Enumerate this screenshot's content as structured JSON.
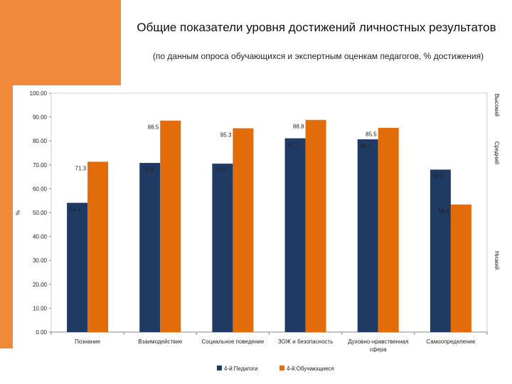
{
  "title": "Общие показатели уровня достижений личностных результатов",
  "subtitle": "(по данным опроса обучающихся и экспертным оценкам педагогов, % достижения)",
  "colors": {
    "accent": "#f08a3a",
    "series1": "#1f3b63",
    "series2": "#e36c0a"
  },
  "chart_data": {
    "type": "bar",
    "ylabel": "%",
    "ylim": [
      0,
      100
    ],
    "yticks": [
      "0.00",
      "10.00",
      "20.00",
      "30.00",
      "40.00",
      "50.00",
      "60.00",
      "70.00",
      "80.00",
      "90.00",
      "100.00"
    ],
    "categories": [
      [
        "Познание"
      ],
      [
        "Взаимодействие"
      ],
      [
        "Социальное поведение"
      ],
      [
        "ЗОЖ и безопасность"
      ],
      [
        "Духовно-нравственная",
        "сфера"
      ],
      [
        "Самоопределение"
      ]
    ],
    "series": [
      {
        "name": "4-й:Педагоги",
        "values": [
          54.1,
          70.8,
          70.5,
          81.1,
          80.7,
          68.0
        ],
        "labels": [
          "54.1",
          "70.8",
          "70.5",
          "81.1",
          "80.7",
          "68.0"
        ]
      },
      {
        "name": "4-й:Обучающиеся",
        "values": [
          71.3,
          88.5,
          85.3,
          88.8,
          85.5,
          53.4
        ],
        "labels": [
          "71.3",
          "88.5",
          "85.3",
          "88.8",
          "85.5",
          "53.4"
        ]
      }
    ],
    "levels": [
      {
        "name": "Высокий",
        "from": 90,
        "to": 100
      },
      {
        "name": "Средний",
        "from": 60,
        "to": 90
      },
      {
        "name": "Низкий",
        "from": 0,
        "to": 60
      }
    ],
    "legend": "bottom"
  }
}
